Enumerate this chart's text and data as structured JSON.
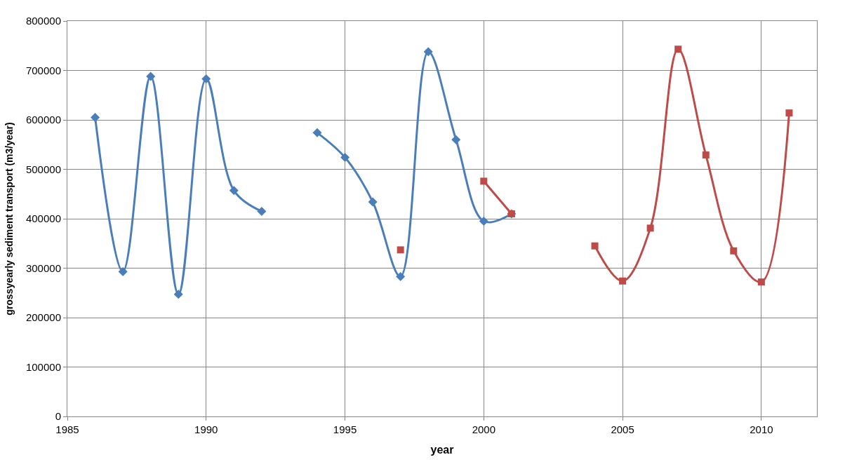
{
  "chart_data": {
    "type": "line",
    "xlabel": "year",
    "ylabel": "grossyearly sediment transport (m3/year)",
    "xlim": [
      1985,
      2012
    ],
    "xticks": [
      1985,
      1990,
      1995,
      2000,
      2005,
      2010
    ],
    "ylim": [
      0,
      800000
    ],
    "yticks": [
      0,
      100000,
      200000,
      300000,
      400000,
      500000,
      600000,
      700000,
      800000
    ],
    "grid": true,
    "series": [
      {
        "color": "#4a7ebb",
        "marker": "diamond",
        "x": [
          1986,
          1987,
          1988,
          1989,
          1990,
          1991,
          1992,
          1993,
          1994,
          1995,
          1996,
          1997,
          1998,
          1999,
          2000,
          2001
        ],
        "values": [
          605000,
          293000,
          688000,
          247000,
          683000,
          457000,
          415000,
          null,
          574000,
          524000,
          434000,
          283000,
          738000,
          560000,
          395000,
          410000
        ]
      },
      {
        "color": "#be4b48",
        "marker": "square",
        "x": [
          1997,
          1998,
          1999,
          2000,
          2001,
          2002,
          2003,
          2004,
          2005,
          2006,
          2007,
          2008,
          2009,
          2010,
          2011
        ],
        "values": [
          337000,
          null,
          null,
          476000,
          410000,
          null,
          null,
          345000,
          274000,
          381000,
          743000,
          529000,
          335000,
          272000,
          614000
        ]
      }
    ]
  }
}
